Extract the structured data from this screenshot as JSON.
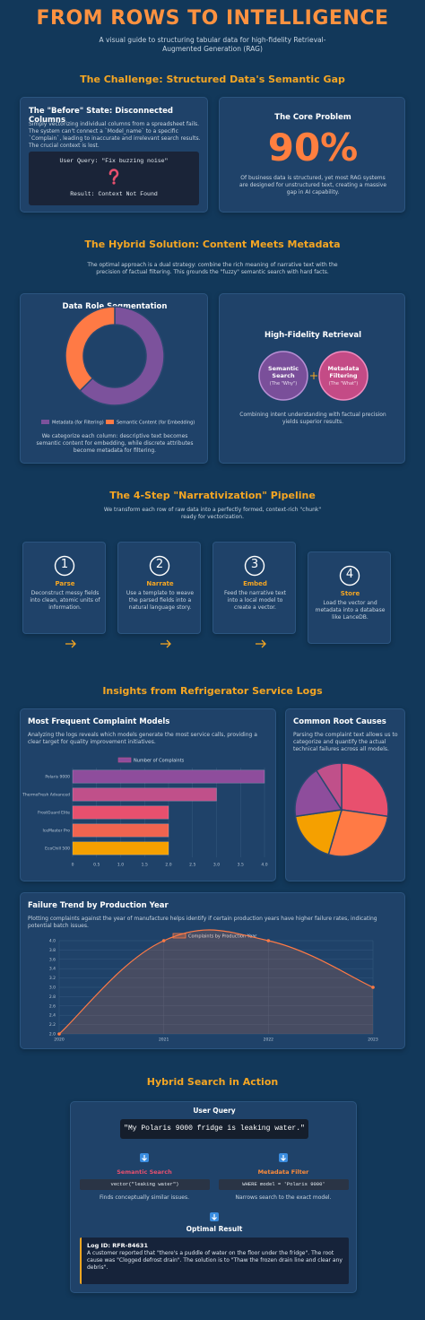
{
  "header": {
    "title": "FROM ROWS TO INTELLIGENCE",
    "subtitle": "A visual guide to structuring tabular data for high-fidelity Retrieval-Augmented Generation (RAG)"
  },
  "challenge": {
    "heading": "The Challenge: Structured Data's Semantic Gap",
    "before": {
      "title": "The \"Before\" State: Disconnected Columns",
      "text": "Simply vectorizing individual columns from a spreadsheet fails. The system can't connect a `Model_name` to a specific `Complain`, leading to inaccurate and irrelevant search results. The crucial context is lost.",
      "query": "User Query: \"Fix buzzing noise\"",
      "result": "Result: Context Not Found"
    },
    "core": {
      "title": "The Core Problem",
      "stat": "90%",
      "text": "Of business data is structured, yet most RAG systems are designed for unstructured text, creating a massive gap in AI capability."
    }
  },
  "hybrid": {
    "heading": "The Hybrid Solution: Content Meets Metadata",
    "intro": "The optimal approach is a dual strategy: combine the rich meaning of narrative text with the precision of factual filtering. This grounds the \"fuzzy\" semantic search with hard facts.",
    "segmentation_caption": "We categorize each column: descriptive text becomes semantic content for embedding, while discrete attributes become metadata for filtering.",
    "retrieval": {
      "title": "High-Fidelity Retrieval",
      "left": {
        "label": "Semantic Search",
        "sub": "(The \"Why\")"
      },
      "right": {
        "label": "Metadata Filtering",
        "sub": "(The \"What\")"
      },
      "caption": "Combining intent understanding with factual precision yields superior results."
    }
  },
  "pipeline": {
    "heading": "The 4-Step \"Narrativization\" Pipeline",
    "intro": "We transform each row of raw data into a perfectly formed, context-rich \"chunk\" ready for vectorization.",
    "steps": [
      {
        "number": "1",
        "title": "Parse",
        "text": "Deconstruct messy fields into clean, atomic units of information."
      },
      {
        "number": "2",
        "title": "Narrate",
        "text": "Use a template to weave the parsed fields into a natural language story."
      },
      {
        "number": "3",
        "title": "Embed",
        "text": "Feed the narrative text into a local model to create a vector."
      },
      {
        "number": "4",
        "title": "Store",
        "text": "Load the vector and metadata into a database like LanceDB."
      }
    ]
  },
  "insights": {
    "heading": "Insights from Refrigerator Service Logs",
    "models_desc": "Analyzing the logs reveals which models generate the most service calls, providing a clear target for quality improvement initiatives.",
    "causes_desc": "Parsing the complaint text allows us to categorize and quantify the actual technical failures across all models.",
    "trend_desc": "Plotting complaints against the year of manufacture helps identify if certain production years have higher failure rates, indicating potential batch issues."
  },
  "search": {
    "heading": "Hybrid Search in Action",
    "query_label": "User Query",
    "query": "\"My Polaris 9000 fridge is leaking water.\"",
    "semantic": {
      "title": "Semantic Search",
      "code": "vector(\"leaking water\")",
      "text": "Finds conceptually similar issues."
    },
    "metadata": {
      "title": "Metadata Filter",
      "code": "WHERE model = 'Polaris 9000'",
      "text": "Narrows search to the exact model."
    },
    "result_title": "Optimal Result",
    "log_id": "Log ID: RFR-84631",
    "log_text": "A customer reported that \"there's a puddle of water on the floor under the fridge\". The root cause was \"Clogged defrost drain\". The solution is to \"Thaw the frozen drain line and clear any debris\"."
  },
  "chart_data": [
    {
      "type": "doughnut",
      "title": "Data Role Segmentation",
      "categories": [
        "Metadata (for Filtering)",
        "Semantic Content (for Embedding)"
      ],
      "values": [
        62.5,
        37.5
      ],
      "colors": [
        "#7c529c",
        "#ff7a45"
      ]
    },
    {
      "type": "hbar",
      "title": "Most Frequent Complaint Models",
      "categories": [
        "Polaris 9000",
        "ThermoFresh Advanced",
        "FrostGuard Elite",
        "IceMaster Pro",
        "EcoChill 500"
      ],
      "series": [
        {
          "name": "Number of Complaints",
          "colors": [
            "#8e4d9c",
            "#c0508a",
            "#e8506e",
            "#f0644f",
            "#f5a000"
          ],
          "values": [
            4,
            3,
            2,
            2,
            2
          ]
        }
      ],
      "xlim": [
        0,
        4
      ],
      "xticks": [
        0,
        0.5,
        {
          "value": 1,
          "label": "1.0"
        },
        1.5,
        {
          "value": 2,
          "label": "2.0"
        },
        2.5,
        {
          "value": 3,
          "label": "3.0"
        },
        3.5,
        {
          "value": 4,
          "label": "4.0"
        }
      ],
      "grid": true
    },
    {
      "type": "pie",
      "title": "Common Root Causes",
      "values": [
        3,
        3,
        2,
        2,
        1
      ],
      "colors": [
        "#e8506e",
        "#ff7a45",
        "#f5a000",
        "#8e4d9c",
        "#c0508a"
      ]
    },
    {
      "type": "line",
      "title": "Failure Trend by Production Year",
      "x": [
        2020,
        2021,
        2022,
        2023
      ],
      "series": [
        {
          "name": "Complaints by Production Year",
          "color": "#ff7a45",
          "values": [
            2,
            4,
            4,
            3
          ]
        }
      ],
      "xlim": [
        2020,
        2023
      ],
      "xticks": [
        2020,
        2021,
        2022,
        2023
      ],
      "ylim": [
        2,
        4
      ],
      "yticks": [
        {
          "value": 2,
          "label": "2.0"
        },
        2.2,
        2.4,
        2.6,
        2.8,
        {
          "value": 3,
          "label": "3.0"
        },
        3.2,
        3.4,
        3.6,
        3.8,
        {
          "value": 4,
          "label": "4.0"
        }
      ],
      "grid": true
    }
  ]
}
